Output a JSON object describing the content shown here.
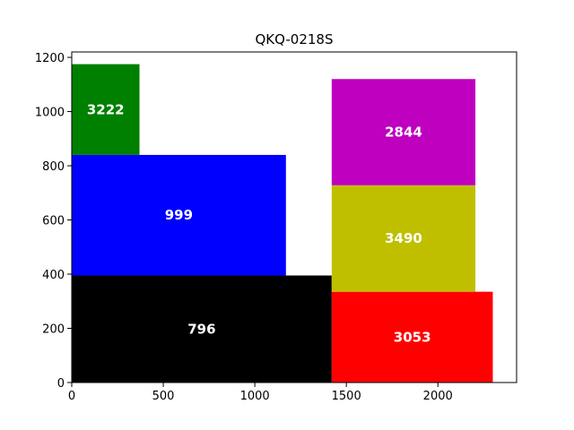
{
  "chart_data": {
    "type": "bar",
    "title": "QKQ-0218S",
    "xlabel": "",
    "ylabel": "",
    "xlim": [
      0,
      2430
    ],
    "ylim": [
      0,
      1220
    ],
    "xticks": [
      0,
      500,
      1000,
      1500,
      2000
    ],
    "yticks": [
      0,
      200,
      400,
      600,
      800,
      1000,
      1200
    ],
    "grid": false,
    "legend": "none",
    "rects": [
      {
        "label": "796",
        "x0": 0,
        "x1": 1420,
        "y0": 0,
        "y1": 395,
        "color": "#000000"
      },
      {
        "label": "999",
        "x0": 0,
        "x1": 1170,
        "y0": 395,
        "y1": 840,
        "color": "#0000ff"
      },
      {
        "label": "3222",
        "x0": 0,
        "x1": 370,
        "y0": 840,
        "y1": 1175,
        "color": "#008000"
      },
      {
        "label": "3053",
        "x0": 1420,
        "x1": 2300,
        "y0": 0,
        "y1": 335,
        "color": "#ff0000"
      },
      {
        "label": "3490",
        "x0": 1420,
        "x1": 2205,
        "y0": 335,
        "y1": 728,
        "color": "#bfbf00"
      },
      {
        "label": "2844",
        "x0": 1420,
        "x1": 2205,
        "y0": 728,
        "y1": 1120,
        "color": "#bf00bf"
      }
    ]
  }
}
